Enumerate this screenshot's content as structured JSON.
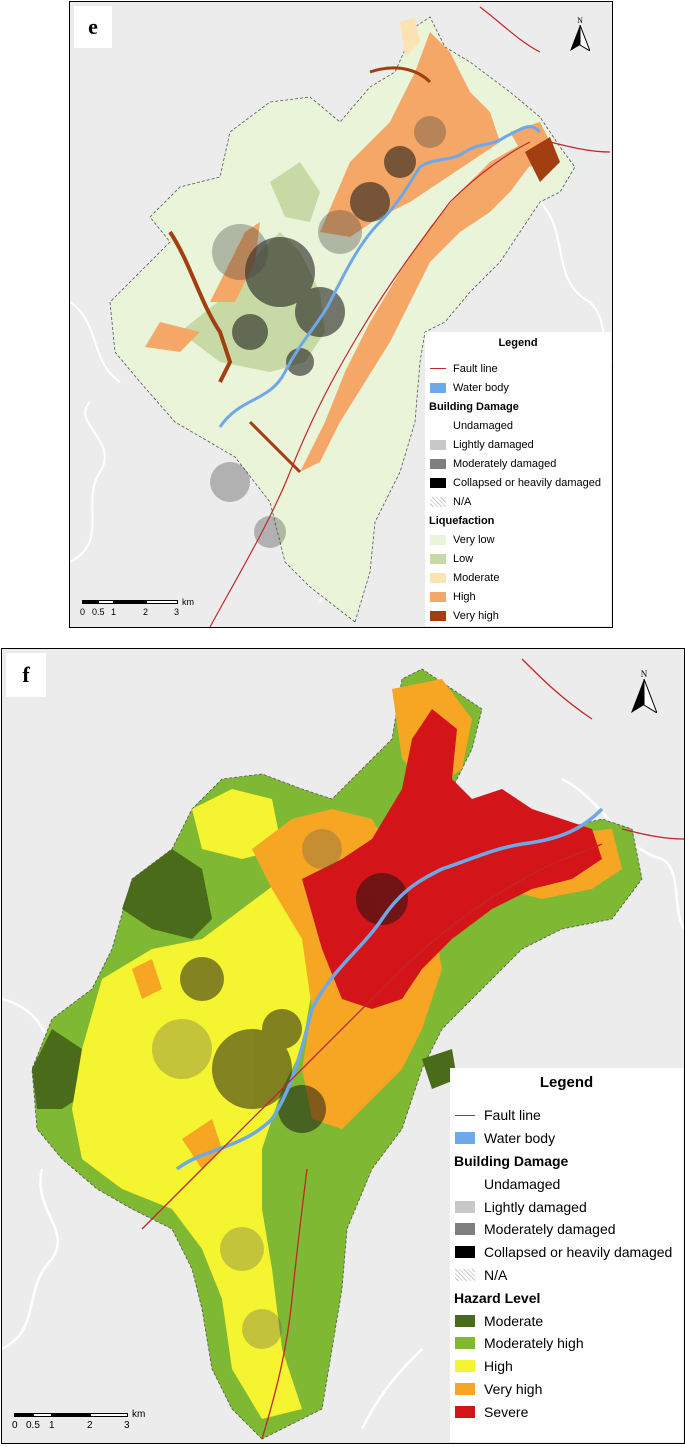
{
  "panels": [
    {
      "id": "e",
      "letter": "e",
      "north_label": "N",
      "legend": {
        "title": "Legend",
        "fault_line": "Fault line",
        "water_body": "Water body",
        "damage_title": "Building Damage",
        "damage_items": [
          "Undamaged",
          "Lightly damaged",
          "Moderately damaged",
          "Collapsed or heavily damaged",
          "N/A"
        ],
        "hazard_title": "Liquefaction",
        "hazard_items": [
          "Very low",
          "Low",
          "Moderate",
          "High",
          "Very high"
        ]
      },
      "scale": {
        "ticks": [
          "0",
          "0.5",
          "1",
          "2",
          "3"
        ],
        "unit": "km"
      }
    },
    {
      "id": "f",
      "letter": "f",
      "north_label": "N",
      "legend": {
        "title": "Legend",
        "fault_line": "Fault line",
        "water_body": "Water body",
        "damage_title": "Building Damage",
        "damage_items": [
          "Undamaged",
          "Lightly damaged",
          "Moderately damaged",
          "Collapsed or heavily damaged",
          "N/A"
        ],
        "hazard_title": "Hazard Level",
        "hazard_items": [
          "Moderate",
          "Moderately high",
          "High",
          "Very high",
          "Severe"
        ]
      },
      "scale": {
        "ticks": [
          "0",
          "0.5",
          "1",
          "2",
          "3"
        ],
        "unit": "km"
      }
    }
  ],
  "colors": {
    "fault_line": "#c1272d",
    "water_body": "#6fa8e8",
    "damage": [
      "#ffffff",
      "#c8c8c8",
      "#7f7f7f",
      "#000000",
      "hatch"
    ],
    "liquefaction": [
      "#eaf4d8",
      "#c7d9a5",
      "#fbe3b3",
      "#f4a766",
      "#a23e0f"
    ],
    "hazard": [
      "#4a6b19",
      "#7fb833",
      "#f4f430",
      "#f6a623",
      "#d3151a"
    ]
  }
}
